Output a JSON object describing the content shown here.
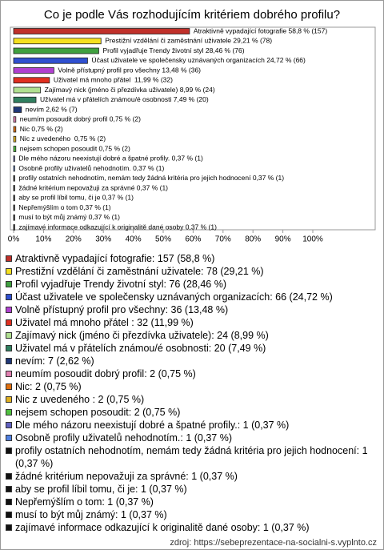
{
  "chart_data": {
    "type": "barh",
    "title": "Co je podle Vás rozhodujícím kritériem dobrého profilu?",
    "categories": [
      "Atraktivně vypadající fotografie: 157 (58,8 %)",
      "Prestižní vzdělání či zaměstnání uživatele: 78 (29,21 %)",
      "Profil vyjadřuje Trendy životní styl: 76 (28,46 %)",
      "Účast uživatele ve společensky uznávaných organizacích: 66 (24,72 %)",
      "Volně přístupný profil pro všechny: 36 (13,48 %)",
      "Uživatel má mnoho přátel : 32 (11,99 %)",
      "Zajímavý nick (jméno či přezdívka uživatele): 24 (8,99 %)",
      "Uživatel má v přátelích známou/é osobnosti: 20 (7,49 %)",
      "nevím: 7 (2,62 %)",
      "neumím posoudit dobrý profil: 2 (0,75 %)",
      "Nic: 2 (0,75 %)",
      "Nic z uvedeného : 2 (0,75 %)",
      "nejsem schopen posoudit: 2 (0,75 %)",
      "Dle mého názoru neexistují dobré a špatné profily.: 1 (0,37 %)",
      "Osobně profily uživatelů nehodnotím.: 1 (0,37 %)",
      "profily ostatních nehodnotím, nemám tedy žádná kritéria pro jejich hodnocení: 1 (0,37 %)",
      "žádné kritérium nepovažuji za správné: 1 (0,37 %)",
      "aby se profil líbil tomu, či je: 1 (0,37 %)",
      "Nepřemýšlím o tom: 1 (0,37 %)",
      "musí to být můj známý: 1 (0,37 %)",
      "zajímavé informace odkazující k originalitě dané osoby: 1 (0,37 %)"
    ],
    "values": [
      58.8,
      29.21,
      28.46,
      24.72,
      13.48,
      11.99,
      8.99,
      7.49,
      2.62,
      0.75,
      0.75,
      0.75,
      0.75,
      0.37,
      0.37,
      0.37,
      0.37,
      0.37,
      0.37,
      0.37,
      0.37
    ],
    "value_labels": [
      "Atraktivně vypadající fotografie 58,8 % (157)",
      "Prestižní vzdělání či zaměstnání uživatele 29,21 % (78)",
      "Profil vyjadřuje Trendy životní styl 28,46 % (76)",
      "Účast uživatele ve společensky uznávaných organizacích 24,72 % (66)",
      "Volně přístupný profil pro všechny 13,48 % (36)",
      "Uživatel má mnoho přátel  11,99 % (32)",
      "Zajímavý nick (jméno či přezdívka uživatele) 8,99 % (24)",
      "Uživatel má v přátelích známou/é osobnosti 7,49 % (20)",
      "nevím 2,62 % (7)",
      "neumím posoudit dobrý profil 0,75 % (2)",
      "Nic 0,75 % (2)",
      "Nic z uvedeného  0,75 % (2)",
      "nejsem schopen posoudit 0,75 % (2)",
      "Dle mého názoru neexistují dobré a špatné profily. 0,37 % (1)",
      "Osobně profily uživatelů nehodnotím. 0,37 % (1)",
      "profily ostatních nehodnotím, nemám tedy žádná kritéria pro jejich hodnocení 0,37 % (1)",
      "žádné kritérium nepovažuji za správné 0,37 % (1)",
      "aby se profil líbil tomu, či je 0,37 % (1)",
      "Nepřemýšlím o tom 0,37 % (1)",
      "musí to být můj známý 0,37 % (1)",
      "zajímavé informace odkazující k originalitě dané osoby 0,37 % (1)"
    ],
    "colors": [
      "#c0302a",
      "#f5e020",
      "#3fa03f",
      "#3050d0",
      "#b040d0",
      "#e03020",
      "#b0e090",
      "#308060",
      "#203878",
      "#e080b0",
      "#e07010",
      "#e0b020",
      "#50c040",
      "#6060c0",
      "#5080e0",
      "#111111",
      "#111111",
      "#111111",
      "#111111",
      "#111111",
      "#111111"
    ],
    "xlim": [
      0,
      100
    ],
    "xticks": [
      {
        "value": 0,
        "label": "0%"
      },
      {
        "value": 10,
        "label": "10%"
      },
      {
        "value": 20,
        "label": "20%"
      },
      {
        "value": 30,
        "label": "30%"
      },
      {
        "value": 40,
        "label": "40%"
      },
      {
        "value": 50,
        "label": "50%"
      },
      {
        "value": 60,
        "label": "60%"
      },
      {
        "value": 70,
        "label": "70%"
      },
      {
        "value": 80,
        "label": "80%"
      },
      {
        "value": 90,
        "label": "90%"
      },
      {
        "value": 100,
        "label": "100%"
      }
    ],
    "source": "zdroj: https://sebeprezentace-na-socialni-s.vyplnto.cz"
  }
}
